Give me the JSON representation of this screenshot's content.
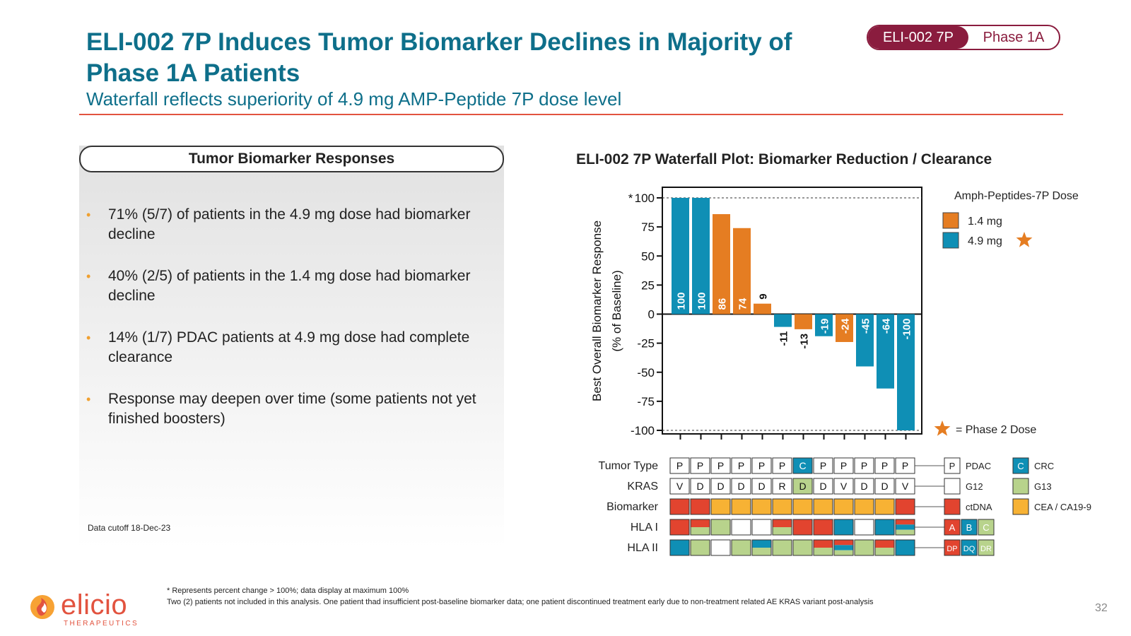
{
  "header": {
    "title": "ELI-002 7P Induces Tumor Biomarker Declines in Majority of Phase 1A Patients",
    "subtitle": "Waterfall reflects superiority of 4.9 mg AMP-Peptide 7P dose level",
    "tag_left": "ELI-002 7P",
    "tag_right": "Phase 1A"
  },
  "panel": {
    "header": "Tumor Biomarker Responses",
    "bullets": [
      "71% (5/7) of patients in the 4.9 mg dose had biomarker decline",
      "40% (2/5) of patients in the 1.4 mg dose had biomarker decline",
      "14% (1/7) PDAC patients at 4.9 mg dose had complete clearance",
      "Response may deepen over time (some patients not yet finished boosters)"
    ],
    "cutoff": "Data cutoff 18-Dec-23"
  },
  "chart_data": {
    "type": "bar",
    "title": "ELI-002 7P Waterfall Plot: Biomarker Reduction / Clearance",
    "ylabel_line1": "Best Overall Biomarker Response",
    "ylabel_line2": "(% of  Baseline)",
    "ylim": [
      -100,
      100
    ],
    "yticks": [
      "100",
      "75",
      "50",
      "25",
      "0",
      "-25",
      "-50",
      "-75",
      "-100"
    ],
    "ytick_values": [
      100,
      75,
      50,
      25,
      0,
      -25,
      -50,
      -75,
      -100
    ],
    "asterisk_tick": "*",
    "values": [
      100,
      100,
      86,
      74,
      9,
      -11,
      -13,
      -19,
      -24,
      -45,
      -64,
      -100
    ],
    "labels": [
      "100",
      "100",
      "86",
      "74",
      "9",
      "-11",
      "-13",
      "-19",
      "-24",
      "-45",
      "-64",
      "-100"
    ],
    "dose": [
      "4.9 mg",
      "4.9 mg",
      "1.4 mg",
      "1.4 mg",
      "1.4 mg",
      "4.9 mg",
      "1.4 mg",
      "4.9 mg",
      "1.4 mg",
      "4.9 mg",
      "4.9 mg",
      "4.9 mg"
    ],
    "legend_title": "Amph-Peptides-7P Dose",
    "legend": [
      {
        "name": "1.4 mg",
        "color": "#e57d22"
      },
      {
        "name": "4.9 mg",
        "color": "#0f8fb5"
      }
    ],
    "phase2_note": "= Phase 2 Dose",
    "phase2_dose": "4.9 mg",
    "grid": false,
    "dotted_reference_lines": [
      100,
      -100
    ],
    "tracks": [
      {
        "label": "Tumor Type",
        "type": "text",
        "cells": [
          "P",
          "P",
          "P",
          "P",
          "P",
          "P",
          "C",
          "P",
          "P",
          "P",
          "P",
          "P"
        ]
      },
      {
        "label": "KRAS",
        "type": "text",
        "cells": [
          "V",
          "D",
          "D",
          "D",
          "D",
          "R",
          "D",
          "D",
          "V",
          "D",
          "D",
          "V"
        ]
      },
      {
        "label": "Biomarker",
        "type": "color",
        "cells": [
          "ctDNA",
          "ctDNA",
          "CEA / CA19-9",
          "CEA / CA19-9",
          "CEA / CA19-9",
          "CEA / CA19-9",
          "CEA / CA19-9",
          "CEA / CA19-9",
          "CEA / CA19-9",
          "CEA / CA19-9",
          "CEA / CA19-9",
          "ctDNA"
        ]
      },
      {
        "label": "HLA I",
        "type": "split",
        "cells": [
          [
            "A"
          ],
          [
            "A",
            "C"
          ],
          [
            "C"
          ],
          [],
          [],
          [
            "A",
            "C"
          ],
          [
            "A"
          ],
          [
            "A"
          ],
          [
            "B"
          ],
          [],
          [
            "B"
          ],
          [
            "A",
            "B",
            "C"
          ]
        ]
      },
      {
        "label": "HLA II",
        "type": "split",
        "cells": [
          [
            "DQ"
          ],
          [
            "DR"
          ],
          [],
          [
            "DR"
          ],
          [
            "DQ",
            "DR"
          ],
          [
            "DR"
          ],
          [
            "DR"
          ],
          [
            "DP",
            "DR"
          ],
          [
            "DP",
            "DQ",
            "DR"
          ],
          [
            "DR"
          ],
          [
            "DP",
            "DR"
          ],
          [
            "DQ"
          ]
        ]
      }
    ],
    "track_legend": [
      {
        "key": "P",
        "label": "PDAC",
        "swatch": "#ffffff",
        "text_color": "#222"
      },
      {
        "key": "C",
        "label": "CRC",
        "swatch": "#0f8fb5",
        "text_color": "#ffffff"
      },
      {
        "key": "",
        "label": "G12",
        "swatch": "#ffffff",
        "text_color": "#222"
      },
      {
        "key": "",
        "label": "G13",
        "swatch": "#b8d38c",
        "text_color": "#222"
      },
      {
        "key": "",
        "label": "ctDNA",
        "swatch": "#e2442f",
        "text_color": "#222"
      },
      {
        "key": "",
        "label": "CEA / CA19-9",
        "swatch": "#f7b234",
        "text_color": "#222"
      }
    ],
    "hla_legend": [
      {
        "key": "A",
        "color": "#e2442f"
      },
      {
        "key": "B",
        "color": "#0f8fb5"
      },
      {
        "key": "C",
        "color": "#b8d38c"
      },
      {
        "key": "DP",
        "color": "#e2442f"
      },
      {
        "key": "DQ",
        "color": "#0f8fb5"
      },
      {
        "key": "DR",
        "color": "#b8d38c"
      }
    ],
    "colors": {
      "1.4 mg": "#e57d22",
      "4.9 mg": "#0f8fb5",
      "CRC": "#0f8fb5",
      "G13": "#b8d38c",
      "ctDNA": "#e2442f",
      "CEA / CA19-9": "#f7b234"
    }
  },
  "footnotes": {
    "line1": "* Represents percent change > 100%; data display at maximum 100%",
    "line2": "Two (2) patients not included in this analysis. One patient thad insufficient post-baseline biomarker data; one patient discontinued treatment early due to non-treatment related AE KRAS variant post-analysis"
  },
  "logo": {
    "word": "elicio",
    "sub": "THERAPEUTICS"
  },
  "page_number": "32"
}
